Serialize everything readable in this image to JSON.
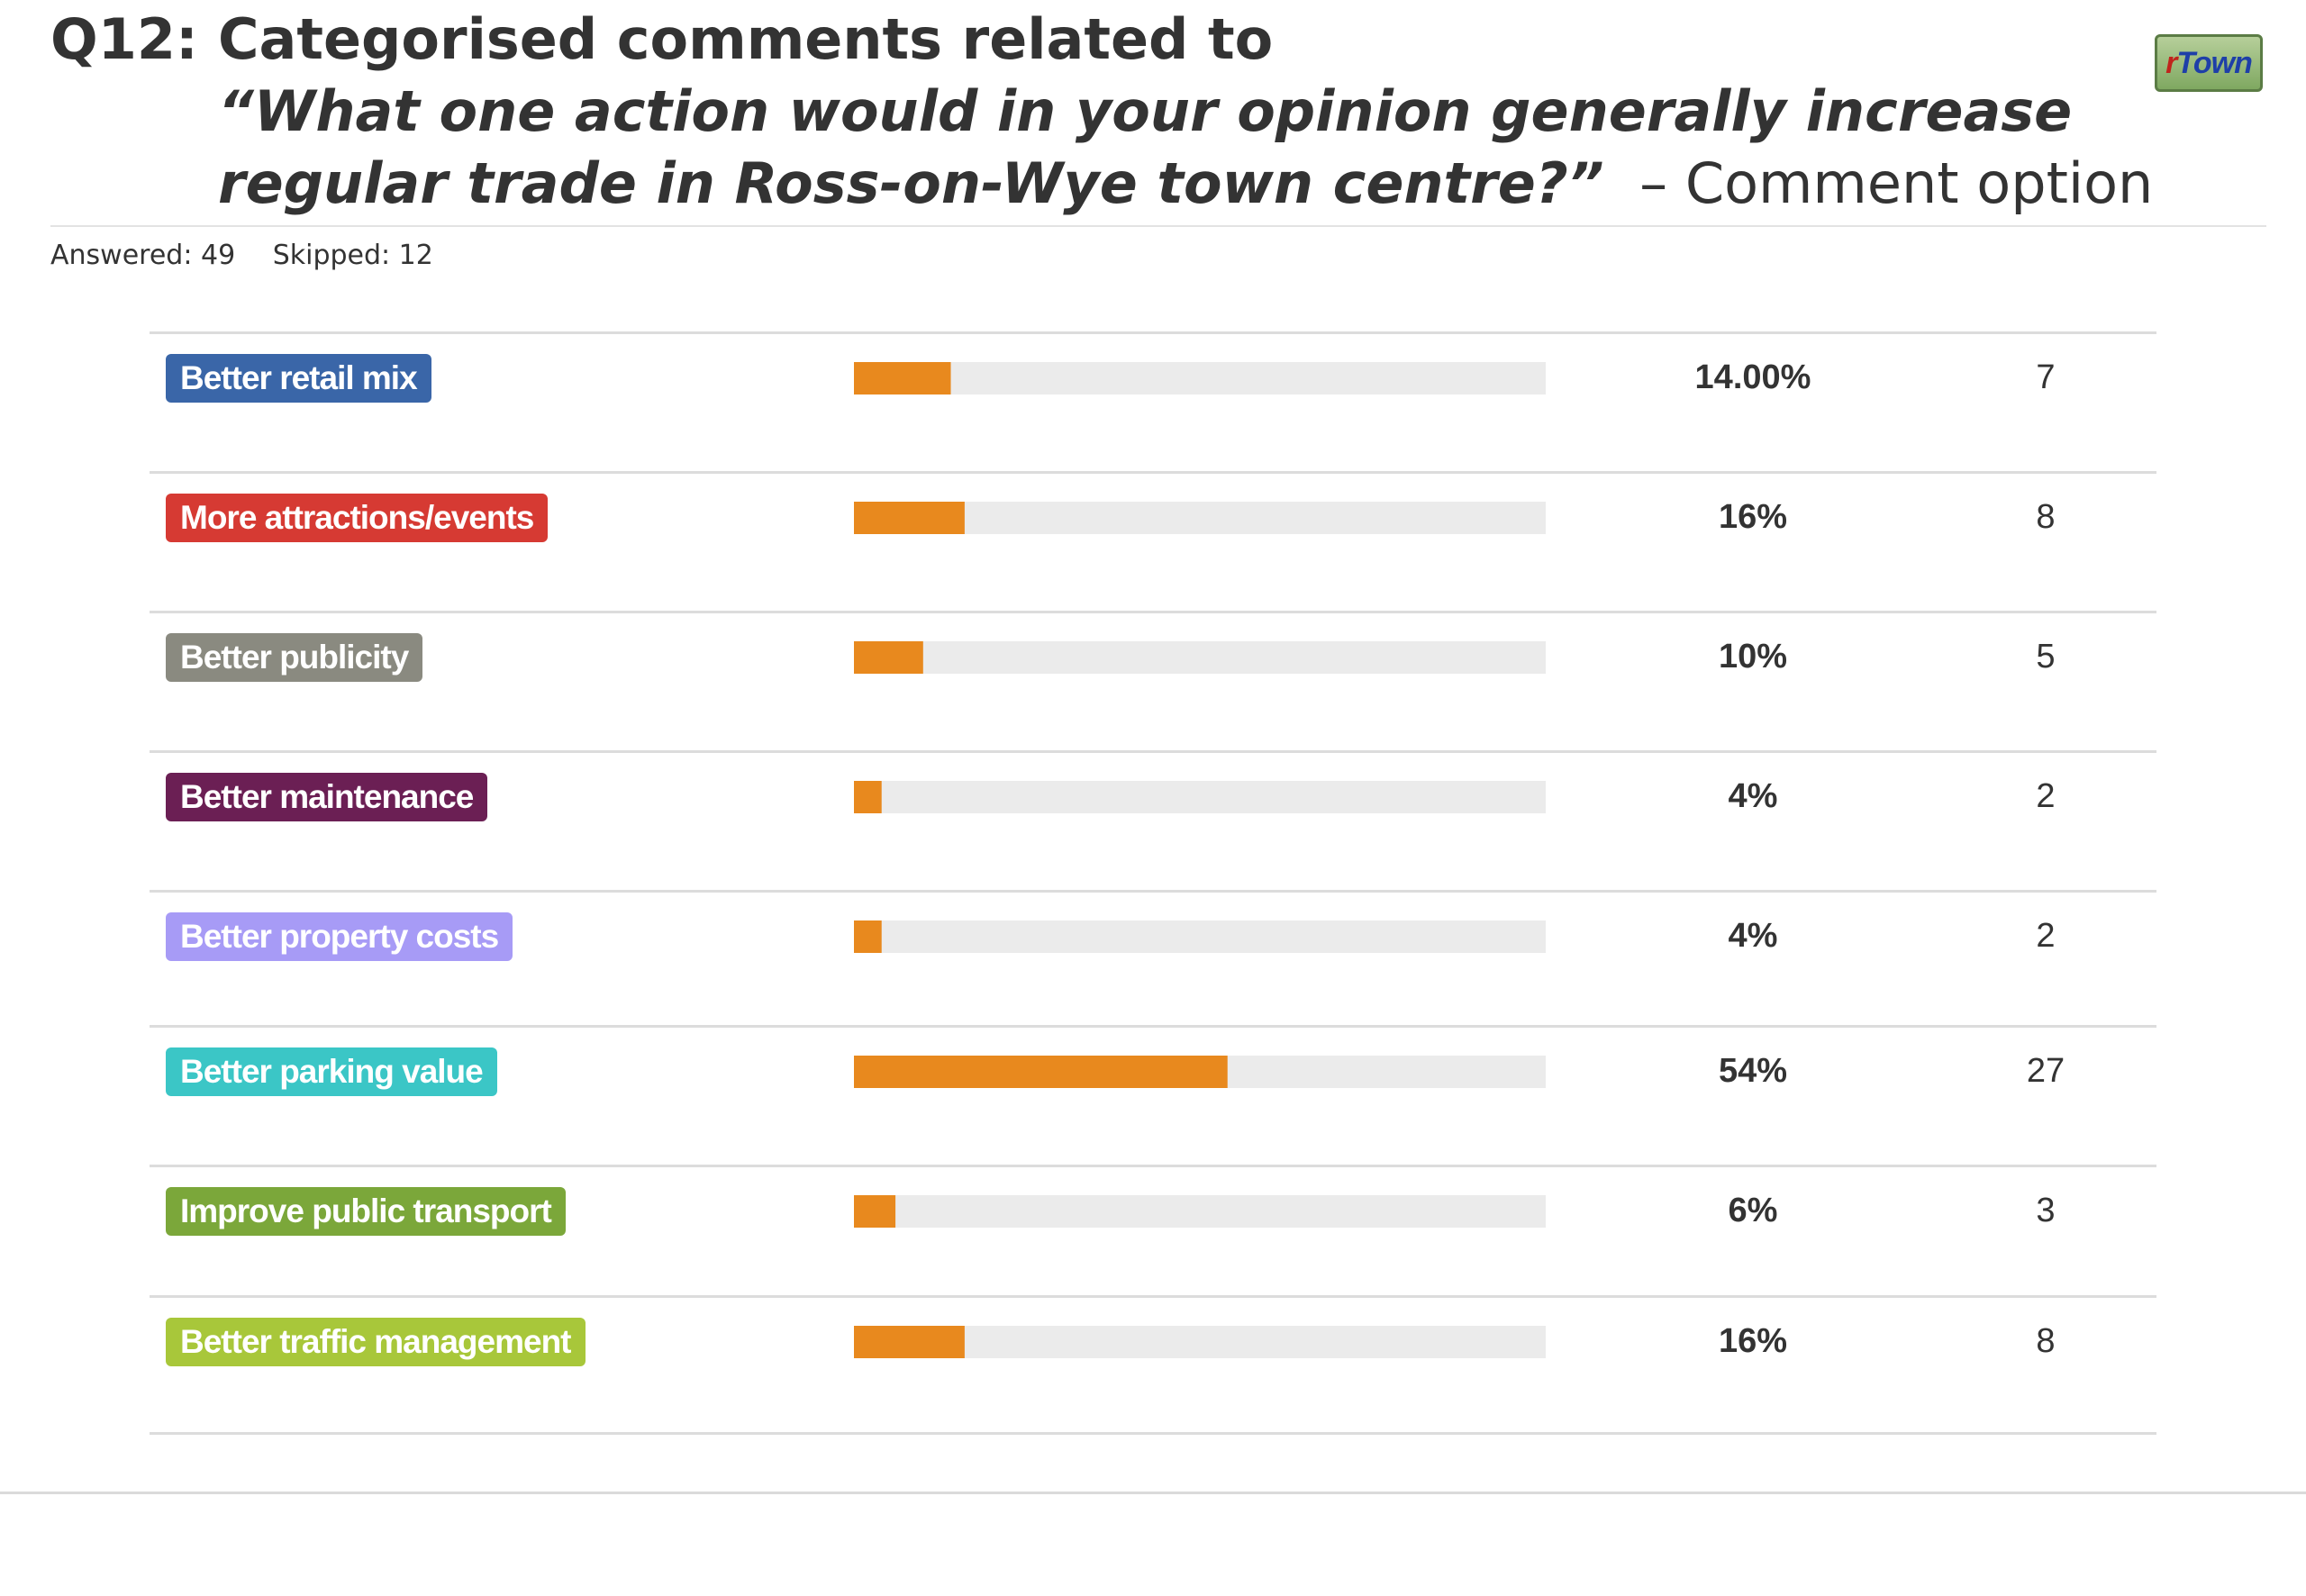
{
  "header": {
    "question_number": "Q12:",
    "line1": "Categorised comments related to",
    "quote_line2": "“What one action would in your opinion generally increase",
    "quote_line3": "regular trade in Ross-on-Wye town centre?”",
    "suffix": "– Comment option"
  },
  "logo": {
    "prefix": "r",
    "text": "Town"
  },
  "stats": {
    "answered": "Answered: 49",
    "skipped": "Skipped: 12"
  },
  "colors": {
    "bar_fill": "#e8891e",
    "bar_track": "#ebebeb",
    "row_rule": "#dcdcdc"
  },
  "chart_data": {
    "type": "bar",
    "orientation": "horizontal",
    "categories": [
      "Better retail mix",
      "More attractions/events",
      "Better publicity",
      "Better maintenance",
      "Better property costs",
      "Better parking value",
      "Improve public transport",
      "Better traffic management"
    ],
    "values": [
      14,
      16,
      10,
      4,
      4,
      54,
      6,
      16
    ],
    "value_labels": [
      "14.00%",
      "16%",
      "10%",
      "4%",
      "4%",
      "54%",
      "6%",
      "16%"
    ],
    "counts": [
      "7",
      "8",
      "5",
      "2",
      "2",
      "27",
      "3",
      "8"
    ],
    "label_colors": [
      "#3a66a8",
      "#d63a33",
      "#8a8a80",
      "#6b1f54",
      "#a79bf6",
      "#3bc6c6",
      "#7ba73a",
      "#a8c73a"
    ],
    "xlim": [
      0,
      100
    ],
    "grid": false,
    "legend": "none"
  }
}
